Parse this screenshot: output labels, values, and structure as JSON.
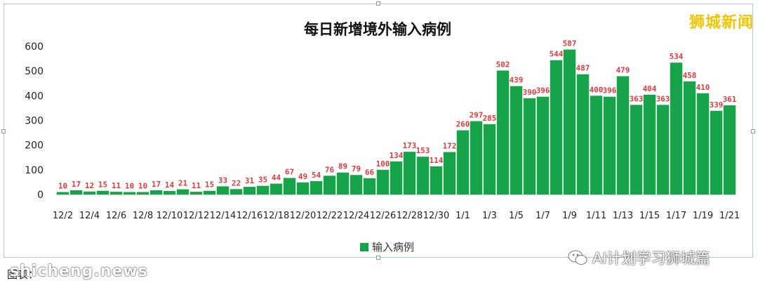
{
  "watermark": "狮城新闻",
  "wechat_tag": "AI计划学习狮城篇",
  "caption": "图表：",
  "site_mark": "shicheng.news",
  "chart_data": {
    "type": "bar",
    "title": "每日新增境外输入病例",
    "xlabel": "",
    "ylabel": "",
    "ylim": [
      0,
      600
    ],
    "yticks": [
      "0",
      "100",
      "200",
      "300",
      "400",
      "500",
      "600"
    ],
    "grid": false,
    "legend_position": "bottom",
    "bar_color": "#17a34a",
    "label_color": "#e5393a",
    "categories": [
      "12/2",
      "12/3",
      "12/4",
      "12/5",
      "12/6",
      "12/7",
      "12/8",
      "12/9",
      "12/10",
      "12/11",
      "12/12",
      "12/13",
      "12/14",
      "12/15",
      "12/16",
      "12/17",
      "12/18",
      "12/19",
      "12/20",
      "12/21",
      "12/22",
      "12/23",
      "12/24",
      "12/25",
      "12/26",
      "12/27",
      "12/28",
      "12/29",
      "12/30",
      "12/31",
      "1/1",
      "1/2",
      "1/3",
      "1/4",
      "1/5",
      "1/6",
      "1/7",
      "1/8",
      "1/9",
      "1/10",
      "1/11",
      "1/12",
      "1/13",
      "1/14",
      "1/15",
      "1/16",
      "1/17",
      "1/18",
      "1/19",
      "1/20",
      "1/21"
    ],
    "tick_labels": [
      "12/2",
      "12/4",
      "12/6",
      "12/8",
      "12/10",
      "12/12",
      "12/14",
      "12/16",
      "12/18",
      "12/20",
      "12/22",
      "12/24",
      "12/26",
      "12/28",
      "12/30",
      "1/1",
      "1/3",
      "1/5",
      "1/7",
      "1/9",
      "1/11",
      "1/13",
      "1/15",
      "1/17",
      "1/19",
      "1/21"
    ],
    "series": [
      {
        "name": "输入病例",
        "values": [
          10,
          17,
          12,
          15,
          11,
          10,
          10,
          17,
          14,
          21,
          11,
          15,
          33,
          22,
          31,
          35,
          44,
          67,
          49,
          54,
          76,
          89,
          79,
          66,
          100,
          134,
          173,
          153,
          114,
          172,
          260,
          297,
          285,
          502,
          439,
          390,
          396,
          544,
          587,
          487,
          400,
          396,
          479,
          363,
          404,
          363,
          534,
          458,
          410,
          339,
          361
        ]
      }
    ]
  }
}
